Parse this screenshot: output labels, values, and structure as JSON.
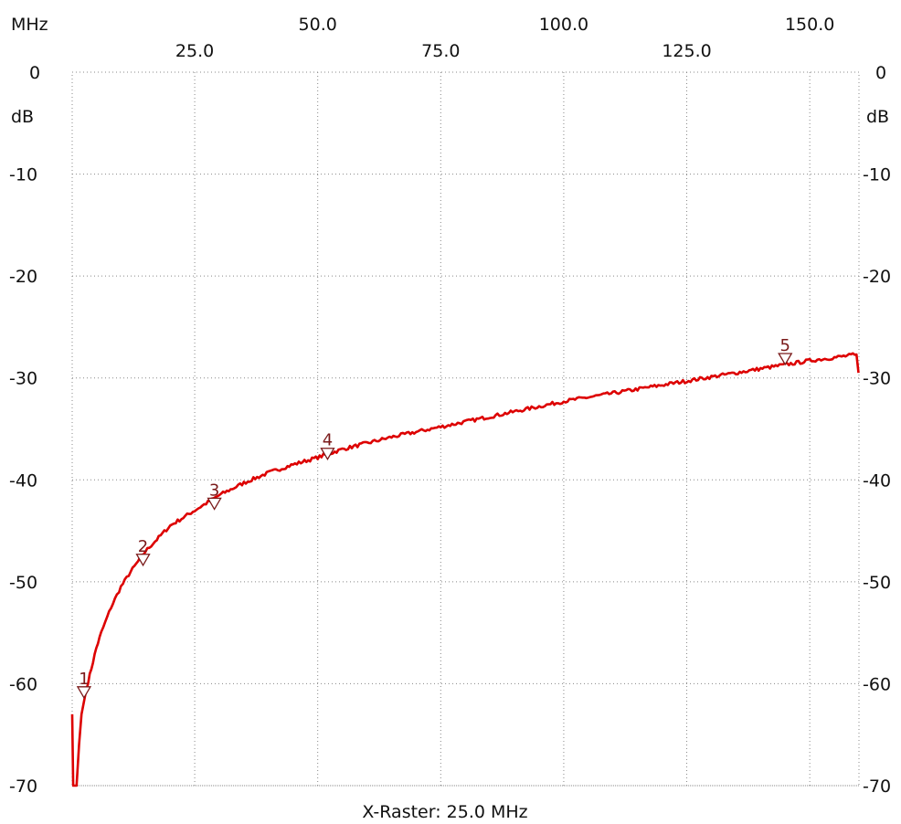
{
  "chart_data": {
    "type": "line",
    "title": "",
    "x_unit_label": "MHz",
    "y_unit_label": "dB",
    "footer": "X-Raster: 25.0 MHz",
    "xlim": [
      0.1,
      160.0
    ],
    "ylim": [
      -70,
      0
    ],
    "x_ticks": [
      {
        "value": 25,
        "label": "25.0"
      },
      {
        "value": 50,
        "label": "50.0"
      },
      {
        "value": 75,
        "label": "75.0"
      },
      {
        "value": 100,
        "label": "100.0"
      },
      {
        "value": 125,
        "label": "125.0"
      },
      {
        "value": 150,
        "label": "150.0"
      }
    ],
    "y_ticks": [
      {
        "value": 0,
        "label": "0"
      },
      {
        "value": -10,
        "label": "-10"
      },
      {
        "value": -20,
        "label": "-20"
      },
      {
        "value": -30,
        "label": "-30"
      },
      {
        "value": -40,
        "label": "-40"
      },
      {
        "value": -50,
        "label": "-50"
      },
      {
        "value": -60,
        "label": "-60"
      },
      {
        "value": -70,
        "label": "-70"
      }
    ],
    "grid": true,
    "colors": {
      "trace": "#dd0000",
      "marker": "#7a1a1a",
      "grid": "#888888",
      "text": "#111111"
    },
    "series": [
      {
        "x": [
          0.1,
          0.3,
          0.5,
          1.0,
          1.5,
          2.0,
          3.0,
          4.0,
          5.0,
          6.0,
          8.0,
          10.0,
          12.0,
          15.0,
          20.0,
          25.0,
          30.0,
          35.0,
          40.0,
          45.0,
          50.0,
          55.0,
          60.0,
          65.0,
          70.0,
          75.0,
          80.0,
          85.0,
          90.0,
          95.0,
          100.0,
          105.0,
          110.0,
          115.0,
          120.0,
          125.0,
          130.0,
          135.0,
          140.0,
          145.0,
          150.0,
          155.0,
          159.5,
          159.9
        ],
        "y": [
          -63,
          -70,
          -70,
          -70,
          -66,
          -63,
          -60.5,
          -58.5,
          -56.5,
          -55,
          -52.5,
          -50.5,
          -49,
          -47,
          -44.5,
          -43,
          -41.5,
          -40.3,
          -39.3,
          -38.5,
          -37.8,
          -37.0,
          -36.4,
          -35.8,
          -35.3,
          -34.8,
          -34.3,
          -33.8,
          -33.3,
          -32.8,
          -32.3,
          -31.9,
          -31.5,
          -31.1,
          -30.7,
          -30.3,
          -29.9,
          -29.5,
          -29.1,
          -28.7,
          -28.3,
          -28.0,
          -27.7,
          -29.5
        ]
      }
    ],
    "markers": [
      {
        "label": "1",
        "x": 2.5,
        "y": -61.2
      },
      {
        "label": "2",
        "x": 14.5,
        "y": -48.2
      },
      {
        "label": "3",
        "x": 29.0,
        "y": -42.7
      },
      {
        "label": "4",
        "x": 52.0,
        "y": -37.8
      },
      {
        "label": "5",
        "x": 145.0,
        "y": -28.5
      }
    ]
  }
}
